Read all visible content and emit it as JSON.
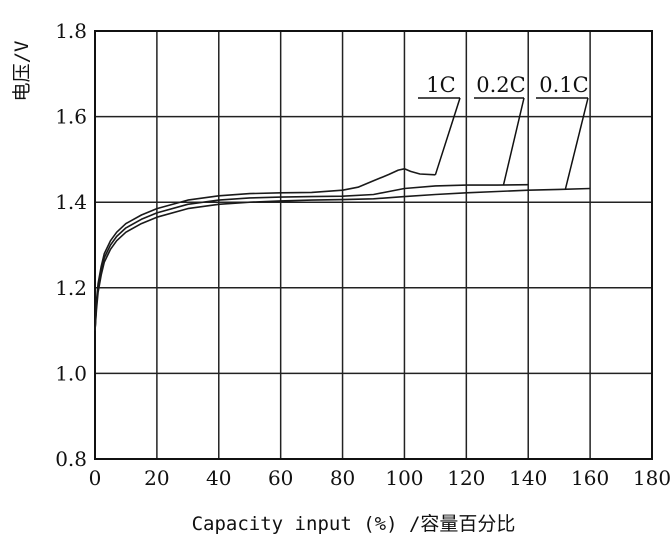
{
  "chart_data": {
    "type": "line",
    "xlabel": "Capacity input (%) /容量百分比",
    "ylabel": "电压/V",
    "xlim": [
      0,
      180
    ],
    "ylim": [
      0.8,
      1.8
    ],
    "x_ticks": [
      0,
      20,
      40,
      60,
      80,
      100,
      120,
      140,
      160,
      180
    ],
    "x_tick_labels": [
      "0",
      "20",
      "40",
      "60",
      "80",
      "100",
      "120",
      "140",
      "160",
      "180"
    ],
    "y_ticks": [
      0.8,
      1.0,
      1.2,
      1.4,
      1.6,
      1.8
    ],
    "y_tick_labels": [
      "0.8",
      "1.0",
      "1.2",
      "1.4",
      "1.6",
      "1.8"
    ],
    "grid": true,
    "series": [
      {
        "name": "1C",
        "color": "#1a1a1a",
        "x": [
          0,
          0.5,
          1,
          2,
          3,
          5,
          7,
          10,
          15,
          20,
          30,
          40,
          50,
          60,
          70,
          80,
          85,
          90,
          95,
          98,
          100,
          102,
          105,
          110
        ],
        "y": [
          1.1,
          1.17,
          1.21,
          1.25,
          1.28,
          1.31,
          1.33,
          1.35,
          1.37,
          1.385,
          1.405,
          1.415,
          1.42,
          1.422,
          1.423,
          1.428,
          1.435,
          1.45,
          1.465,
          1.475,
          1.478,
          1.472,
          1.466,
          1.464
        ]
      },
      {
        "name": "0.2C",
        "color": "#1a1a1a",
        "x": [
          0,
          0.5,
          1,
          2,
          3,
          5,
          7,
          10,
          15,
          20,
          30,
          40,
          50,
          60,
          70,
          80,
          90,
          95,
          100,
          110,
          120,
          130,
          140
        ],
        "y": [
          1.1,
          1.16,
          1.2,
          1.24,
          1.27,
          1.3,
          1.32,
          1.34,
          1.36,
          1.375,
          1.395,
          1.405,
          1.41,
          1.412,
          1.413,
          1.414,
          1.418,
          1.425,
          1.432,
          1.438,
          1.44,
          1.44,
          1.441
        ]
      },
      {
        "name": "0.1C",
        "color": "#1a1a1a",
        "x": [
          0,
          0.5,
          1,
          2,
          3,
          5,
          7,
          10,
          15,
          20,
          30,
          40,
          50,
          60,
          70,
          80,
          90,
          100,
          110,
          120,
          130,
          140,
          150,
          160
        ],
        "y": [
          1.1,
          1.15,
          1.19,
          1.23,
          1.26,
          1.29,
          1.31,
          1.33,
          1.35,
          1.365,
          1.385,
          1.395,
          1.4,
          1.403,
          1.405,
          1.406,
          1.408,
          1.413,
          1.418,
          1.422,
          1.425,
          1.428,
          1.43,
          1.432
        ]
      }
    ],
    "annotations": [
      {
        "series": "1C",
        "label": "1C",
        "anchor_x": 110,
        "anchor_y": 1.464
      },
      {
        "series": "0.2C",
        "label": "0.2C",
        "anchor_x": 132,
        "anchor_y": 1.44
      },
      {
        "series": "0.1C",
        "label": "0.1C",
        "anchor_x": 152,
        "anchor_y": 1.43
      }
    ]
  }
}
